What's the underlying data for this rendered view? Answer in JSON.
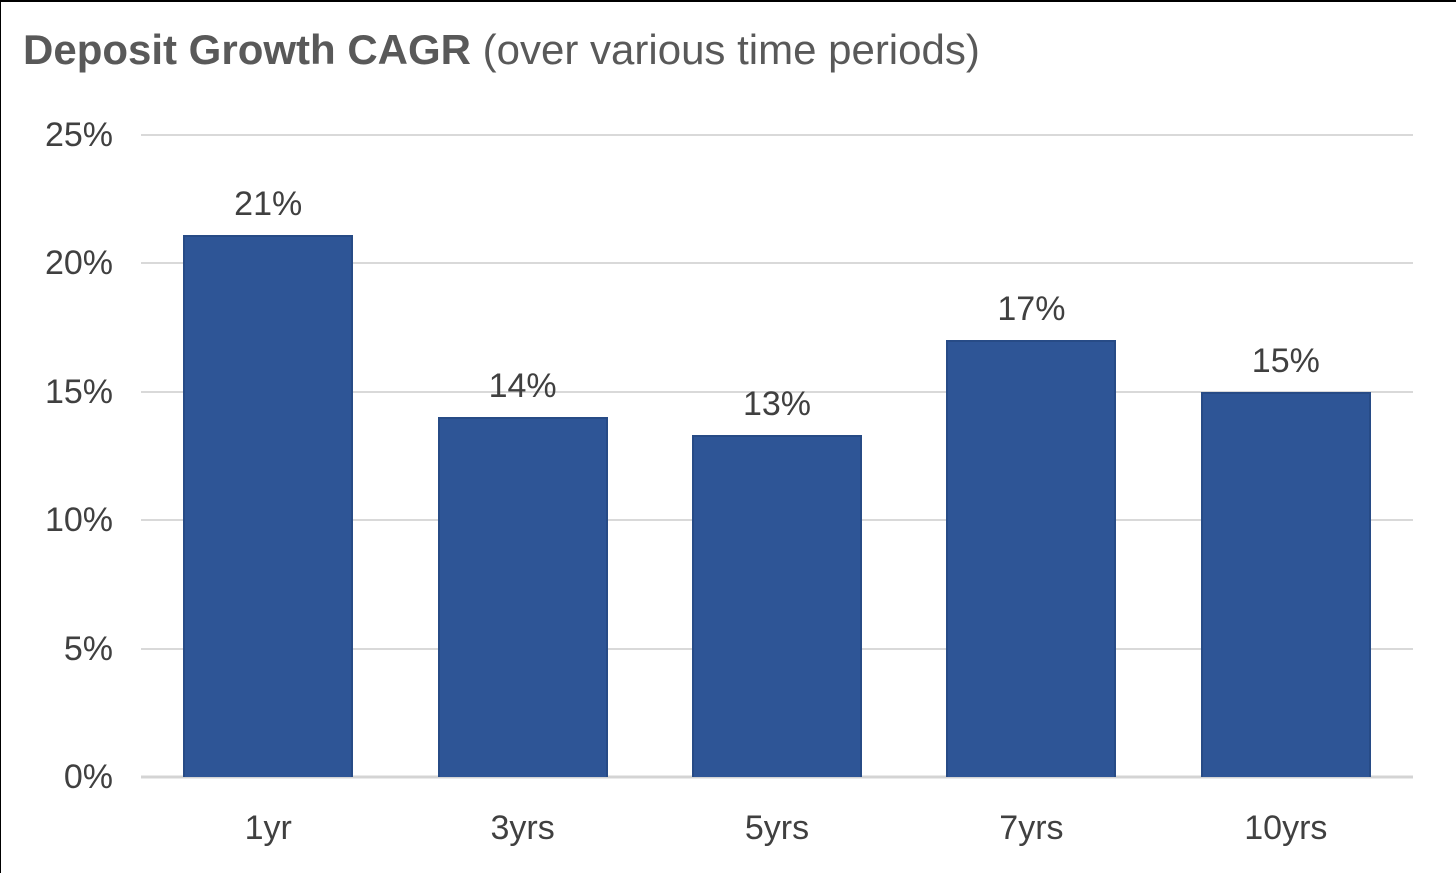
{
  "title": {
    "main": "Deposit Growth CAGR",
    "sub": "(over various time periods)"
  },
  "chart_data": {
    "type": "bar",
    "title": "Deposit Growth CAGR (over various time periods)",
    "categories": [
      "1yr",
      "3yrs",
      "5yrs",
      "7yrs",
      "10yrs"
    ],
    "values": [
      21.1,
      14.0,
      13.3,
      17.0,
      15.0
    ],
    "data_labels": [
      "21%",
      "14%",
      "13%",
      "17%",
      "15%"
    ],
    "xlabel": "",
    "ylabel": "",
    "ylim": [
      0,
      25
    ],
    "yticks": [
      {
        "value": 25,
        "label": "25%"
      },
      {
        "value": 20,
        "label": "20%"
      },
      {
        "value": 15,
        "label": "15%"
      },
      {
        "value": 10,
        "label": "10%"
      },
      {
        "value": 5,
        "label": "5%"
      },
      {
        "value": 0,
        "label": "0%"
      }
    ],
    "grid": "horizontal",
    "legend": "none",
    "bar_color": "#2E5596",
    "bar_border_color": "#274B86",
    "gridline_color": "#D9D9D9",
    "axis_label_color": "#404040",
    "title_color": "#595959"
  }
}
